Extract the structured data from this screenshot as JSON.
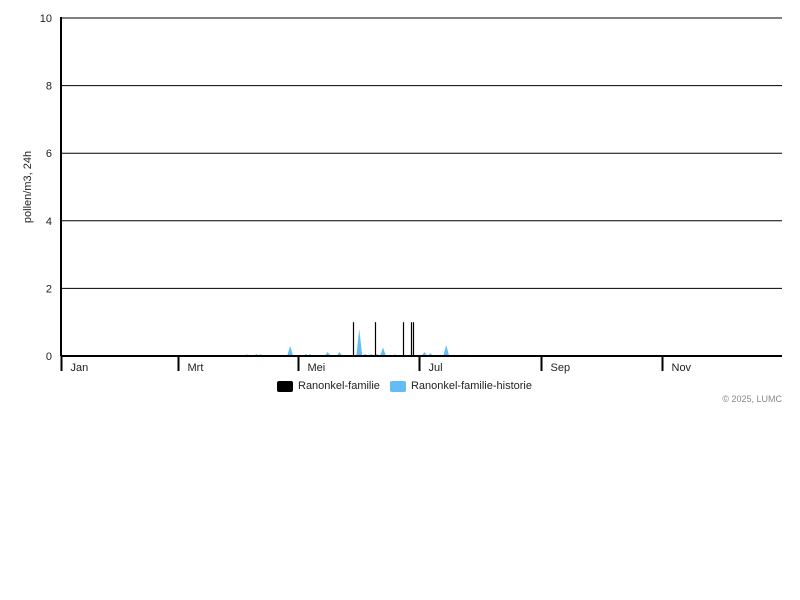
{
  "chart_data": {
    "type": "area",
    "ylabel": "pollen/m3, 24h",
    "ylim": [
      0,
      10
    ],
    "yticks": [
      "0",
      "2",
      "4",
      "6",
      "8",
      "10"
    ],
    "xlim": [
      "2025-01-01",
      "2025-12-31"
    ],
    "xticks": [
      {
        "label": "Jan",
        "date": "2025-01-01"
      },
      {
        "label": "Mrt",
        "date": "2025-03-01"
      },
      {
        "label": "Mei",
        "date": "2025-05-01"
      },
      {
        "label": "Jul",
        "date": "2025-07-01"
      },
      {
        "label": "Sep",
        "date": "2025-09-01"
      },
      {
        "label": "Nov",
        "date": "2025-11-01"
      }
    ],
    "grid": true,
    "legend_position": "bottom",
    "series": [
      {
        "name": "Ranonkel-familie",
        "color": "#000000",
        "type": "bar",
        "points": [
          [
            "2025-05-29",
            1
          ],
          [
            "2025-06-09",
            1
          ],
          [
            "2025-06-23",
            1
          ],
          [
            "2025-06-27",
            1
          ],
          [
            "2025-06-28",
            1
          ]
        ]
      },
      {
        "name": "Ranonkel-familie-historie",
        "color": "#64bcf6",
        "type": "area",
        "points": [
          [
            "2025-04-05",
            0.05
          ],
          [
            "2025-04-10",
            0.06
          ],
          [
            "2025-04-12",
            0.05
          ],
          [
            "2025-04-27",
            0.3
          ],
          [
            "2025-05-05",
            0.06
          ],
          [
            "2025-05-07",
            0.05
          ],
          [
            "2025-05-16",
            0.12
          ],
          [
            "2025-05-22",
            0.12
          ],
          [
            "2025-06-01",
            0.8
          ],
          [
            "2025-06-04",
            0.06
          ],
          [
            "2025-06-07",
            0.06
          ],
          [
            "2025-06-10",
            0.06
          ],
          [
            "2025-06-13",
            0.25
          ],
          [
            "2025-06-19",
            0.05
          ],
          [
            "2025-07-04",
            0.12
          ],
          [
            "2025-07-07",
            0.08
          ],
          [
            "2025-07-12",
            0.04
          ],
          [
            "2025-07-15",
            0.32
          ],
          [
            "2025-07-23",
            0.04
          ],
          [
            "2025-07-25",
            0.04
          ],
          [
            "2025-10-10",
            0.03
          ]
        ]
      }
    ]
  },
  "footer": {
    "copyright": "© 2025, LUMC"
  }
}
